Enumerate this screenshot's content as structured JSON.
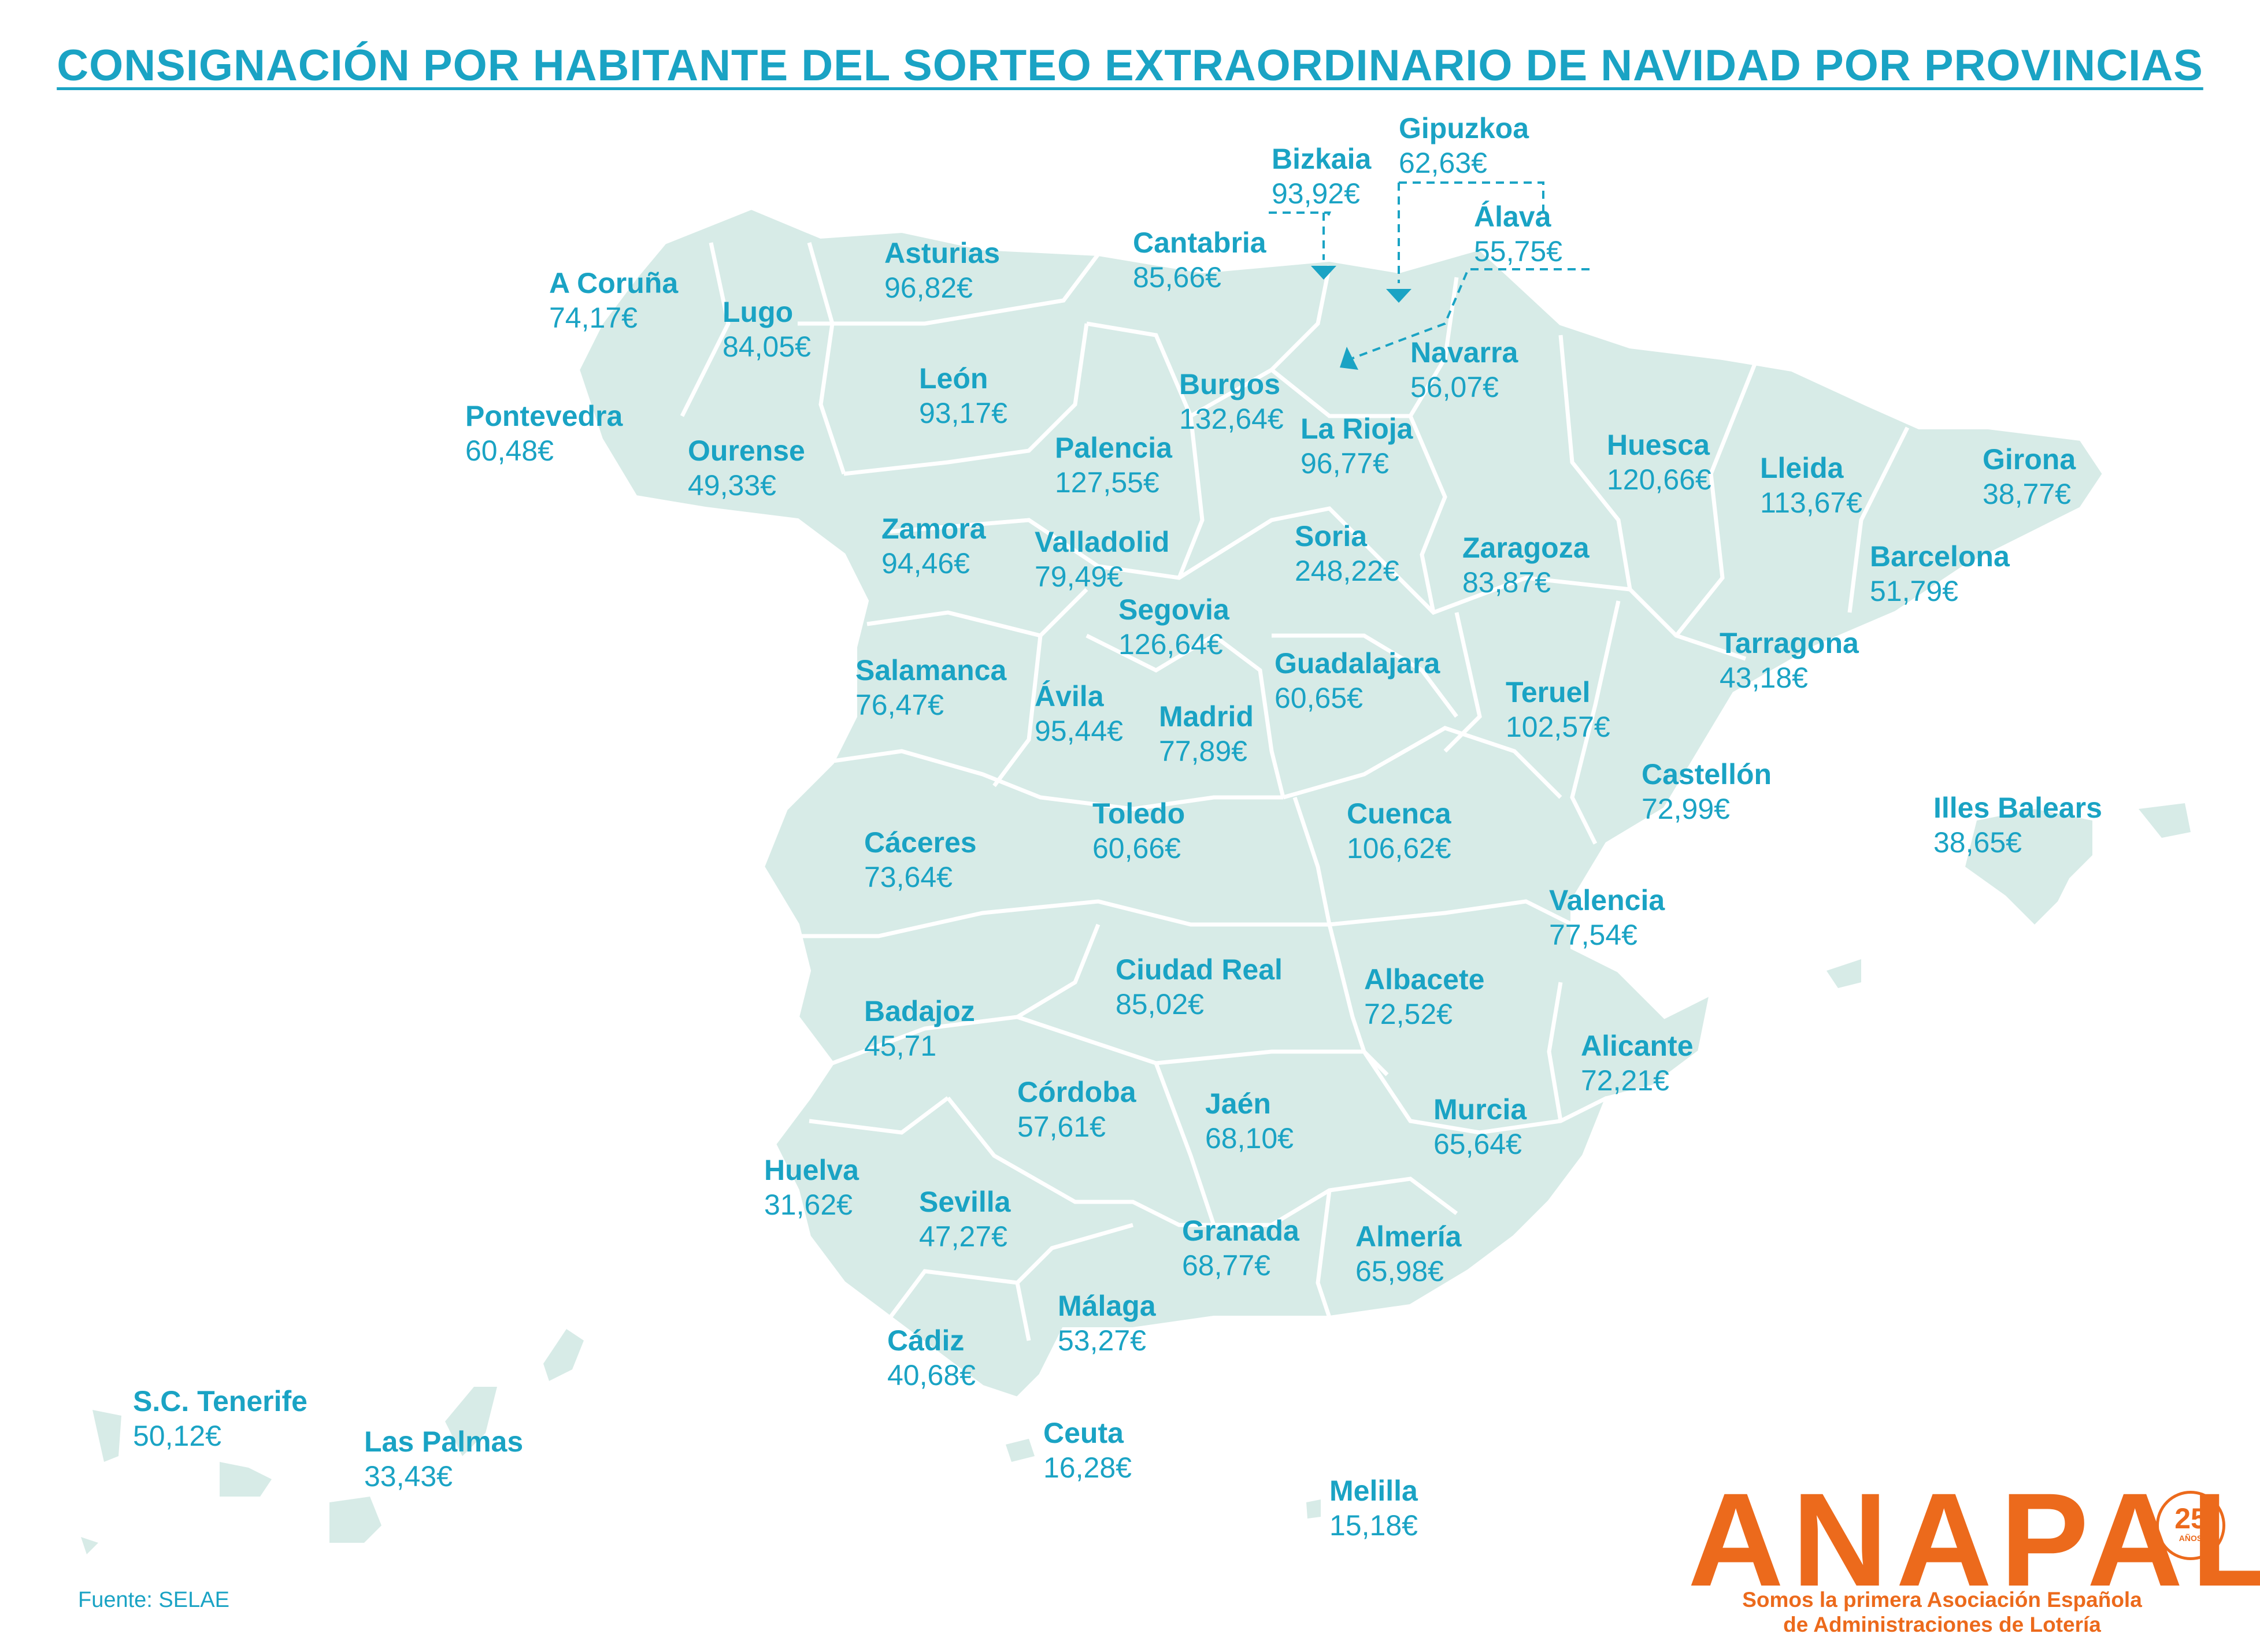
{
  "title": "CONSIGNACIÓN POR HABITANTE DEL SORTEO EXTRAORDINARIO DE NAVIDAD POR PROVINCIAS",
  "colors": {
    "accent": "#1aa3c4",
    "land": "#d7ebe7",
    "border": "#ffffff",
    "logo": "#ec6a1c"
  },
  "provinces": [
    {
      "name": "A Coruña",
      "value": "74,17€"
    },
    {
      "name": "Lugo",
      "value": "84,05€"
    },
    {
      "name": "Asturias",
      "value": "96,82€"
    },
    {
      "name": "Cantabria",
      "value": "85,66€"
    },
    {
      "name": "Bizkaia",
      "value": "93,92€"
    },
    {
      "name": "Gipuzkoa",
      "value": "62,63€"
    },
    {
      "name": "Álava",
      "value": "55,75€"
    },
    {
      "name": "Navarra",
      "value": "56,07€"
    },
    {
      "name": "Pontevedra",
      "value": "60,48€"
    },
    {
      "name": "Ourense",
      "value": "49,33€"
    },
    {
      "name": "León",
      "value": "93,17€"
    },
    {
      "name": "Burgos",
      "value": "132,64€"
    },
    {
      "name": "La Rioja",
      "value": "96,77€"
    },
    {
      "name": "Palencia",
      "value": "127,55€"
    },
    {
      "name": "Huesca",
      "value": "120,66€"
    },
    {
      "name": "Lleida",
      "value": "113,67€"
    },
    {
      "name": "Girona",
      "value": "38,77€"
    },
    {
      "name": "Zamora",
      "value": "94,46€"
    },
    {
      "name": "Valladolid",
      "value": "79,49€"
    },
    {
      "name": "Soria",
      "value": "248,22€"
    },
    {
      "name": "Zaragoza",
      "value": "83,87€"
    },
    {
      "name": "Barcelona",
      "value": "51,79€"
    },
    {
      "name": "Segovia",
      "value": "126,64€"
    },
    {
      "name": "Salamanca",
      "value": "76,47€"
    },
    {
      "name": "Ávila",
      "value": "95,44€"
    },
    {
      "name": "Madrid",
      "value": "77,89€"
    },
    {
      "name": "Guadalajara",
      "value": "60,65€"
    },
    {
      "name": "Teruel",
      "value": "102,57€"
    },
    {
      "name": "Tarragona",
      "value": "43,18€"
    },
    {
      "name": "Castellón",
      "value": "72,99€"
    },
    {
      "name": "Illes Balears",
      "value": "38,65€"
    },
    {
      "name": "Cáceres",
      "value": "73,64€"
    },
    {
      "name": "Toledo",
      "value": "60,66€"
    },
    {
      "name": "Cuenca",
      "value": "106,62€"
    },
    {
      "name": "Valencia",
      "value": "77,54€"
    },
    {
      "name": "Ciudad Real",
      "value": "85,02€"
    },
    {
      "name": "Albacete",
      "value": "72,52€"
    },
    {
      "name": "Badajoz",
      "value": "45,71"
    },
    {
      "name": "Alicante",
      "value": "72,21€"
    },
    {
      "name": "Córdoba",
      "value": "57,61€"
    },
    {
      "name": "Jaén",
      "value": "68,10€"
    },
    {
      "name": "Murcia",
      "value": "65,64€"
    },
    {
      "name": "Huelva",
      "value": "31,62€"
    },
    {
      "name": "Sevilla",
      "value": "47,27€"
    },
    {
      "name": "Granada",
      "value": "68,77€"
    },
    {
      "name": "Almería",
      "value": "65,98€"
    },
    {
      "name": "Málaga",
      "value": "53,27€"
    },
    {
      "name": "Cádiz",
      "value": "40,68€"
    },
    {
      "name": "S.C. Tenerife",
      "value": "50,12€"
    },
    {
      "name": "Las Palmas",
      "value": "33,43€"
    },
    {
      "name": "Ceuta",
      "value": "16,28€"
    },
    {
      "name": "Melilla",
      "value": "15,18€"
    }
  ],
  "source": "Fuente: SELAE",
  "logo": {
    "word": "ANAPAL",
    "years": "25",
    "years_sub": "AÑOS",
    "tagline_1": "Somos la primera Asociación Española",
    "tagline_2": "de Administraciones de Lotería"
  }
}
